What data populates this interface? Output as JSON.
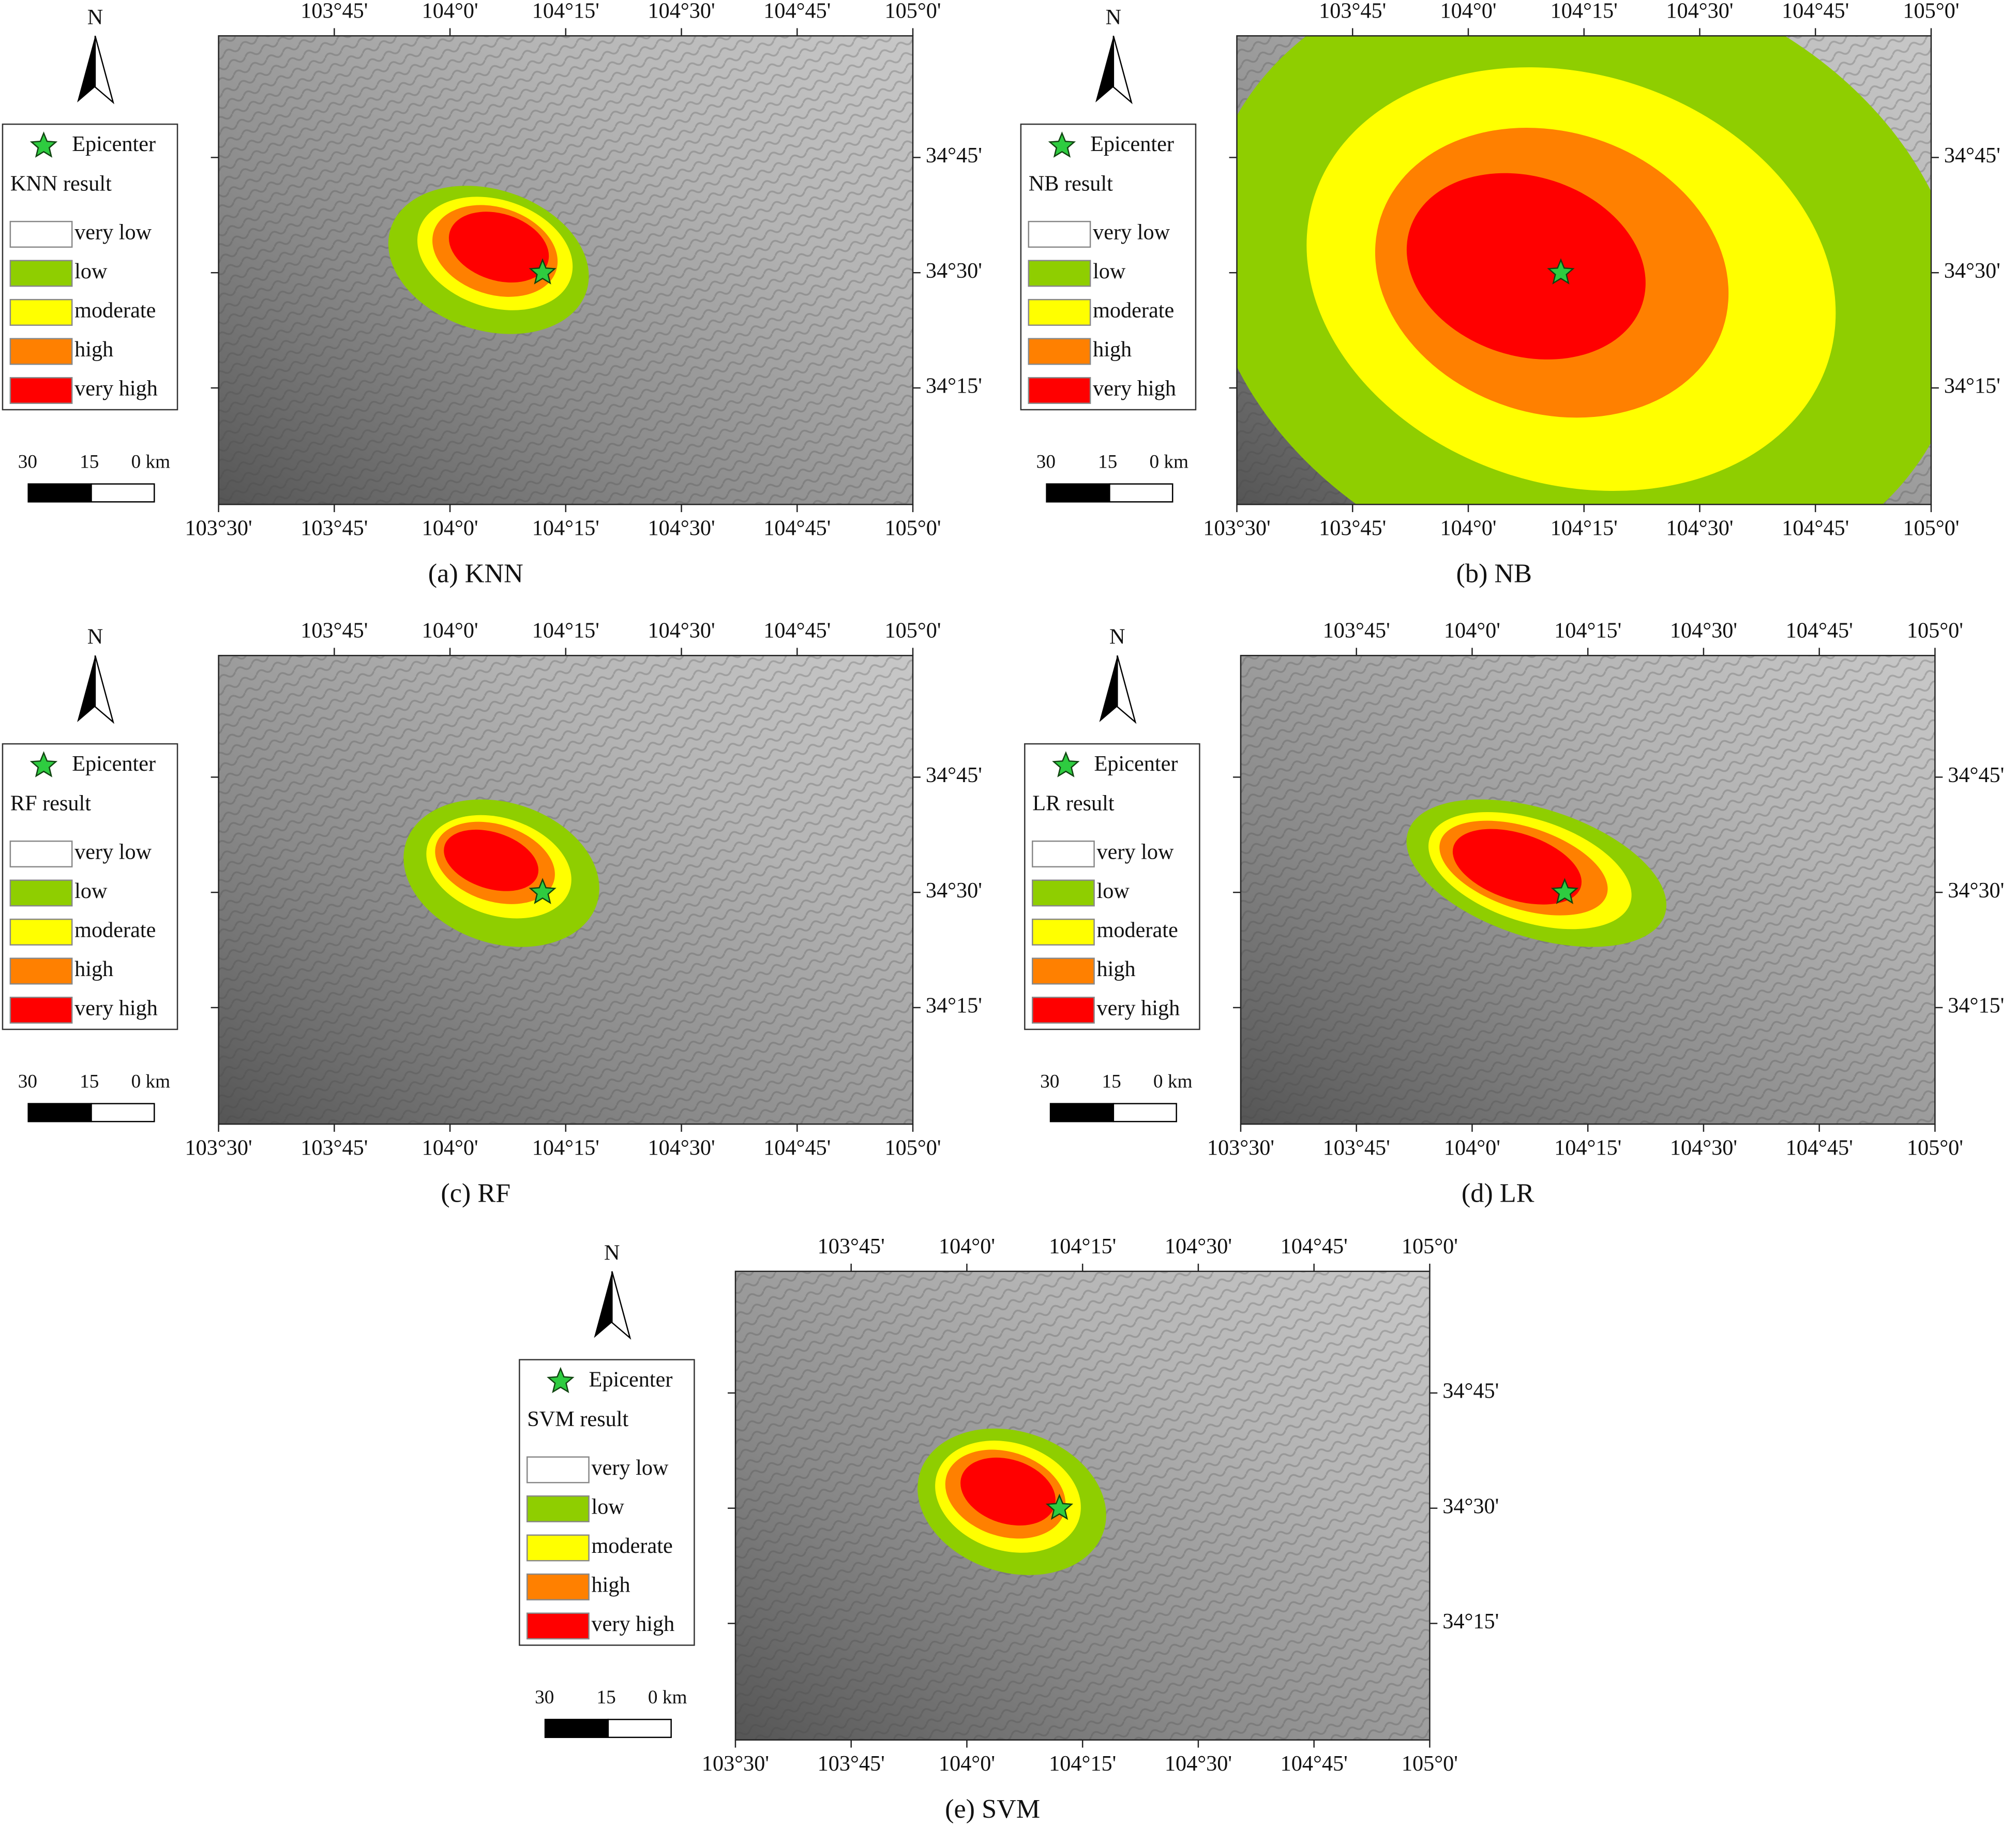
{
  "north": "N",
  "epicenter": "Epicenter",
  "classes": [
    "very low",
    "low",
    "moderate",
    "high",
    "very high"
  ],
  "class_colors": [
    "#ffffff",
    "#8fce00",
    "#ffff00",
    "#ff8000",
    "#ff0000"
  ],
  "epicenter_color": "#2ecc40",
  "scale_labels": [
    "30",
    "15",
    "0 km"
  ],
  "axes": {
    "top": [
      "103°45'",
      "104°0'",
      "104°15'",
      "104°30'",
      "104°45'",
      "105°0'"
    ],
    "bottom": [
      "103°30'",
      "103°45'",
      "104°0'",
      "104°15'",
      "104°30'",
      "104°45'",
      "105°0'"
    ],
    "right": [
      "34°45'",
      "34°30'",
      "34°15'"
    ]
  },
  "panels": [
    {
      "legend_title": "KNN result",
      "caption": "(a) KNN"
    },
    {
      "legend_title": "NB result",
      "caption": "(b) NB"
    },
    {
      "legend_title": "RF result",
      "caption": "(c) RF"
    },
    {
      "legend_title": "LR result",
      "caption": "(d) LR"
    },
    {
      "legend_title": "SVM result",
      "caption": "(e) SVM"
    }
  ]
}
